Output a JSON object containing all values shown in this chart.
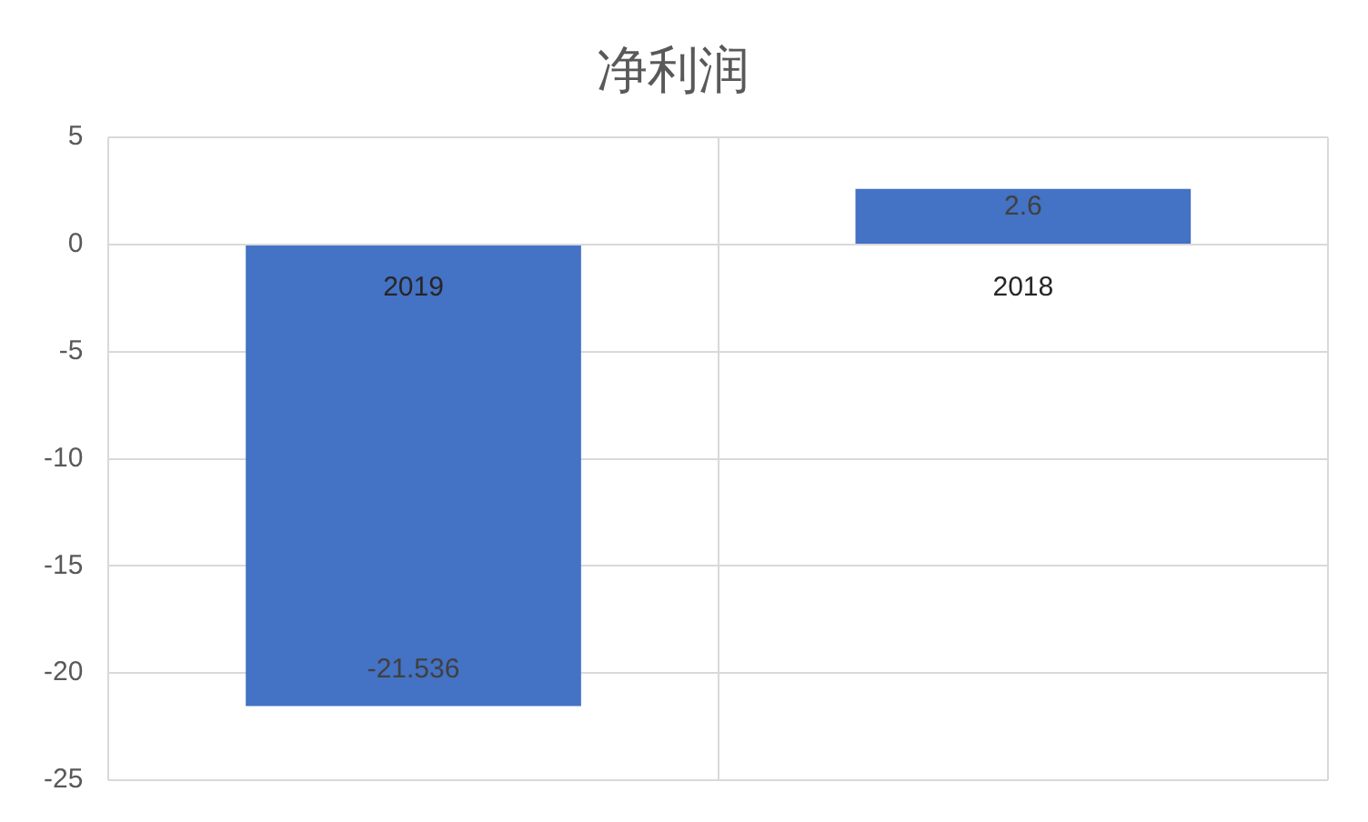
{
  "chart_data": {
    "type": "bar",
    "title": "净利润",
    "categories": [
      "2019",
      "2018"
    ],
    "values": [
      -21.536,
      2.6
    ],
    "color": "#4472c4",
    "ylim": [
      -25,
      5
    ],
    "yticks": [
      -25,
      -20,
      -15,
      -10,
      -5,
      0,
      5
    ],
    "grid": true,
    "data_labels": true
  }
}
